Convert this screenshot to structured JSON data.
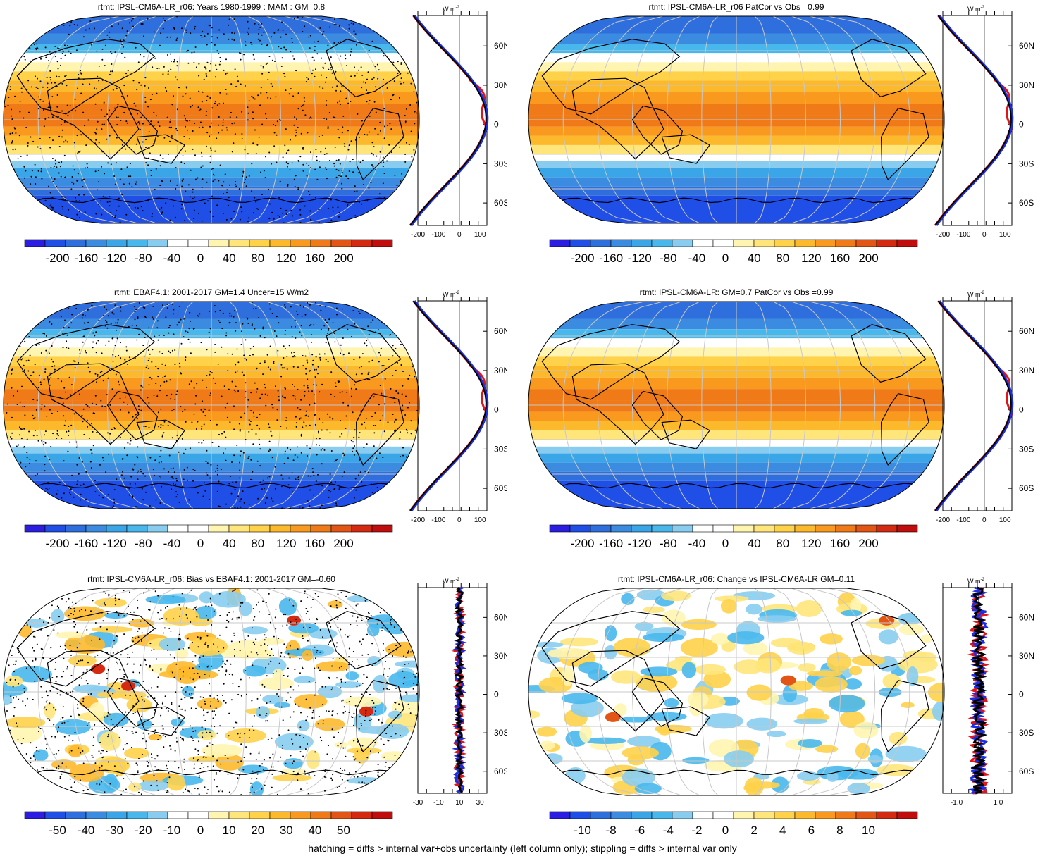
{
  "footnote": "hatching = diffs > internal var+obs uncertainty (left column only); stippling = diffs > internal var only",
  "profile_unit": "W m",
  "profile_unit_sup": "-2",
  "lat_labels": [
    "60N",
    "30N",
    "0",
    "30S",
    "60S"
  ],
  "colors": {
    "scale": [
      "#2c1ee0",
      "#1f4fe6",
      "#2f6fdd",
      "#3b8be0",
      "#3aa6e8",
      "#48b8ec",
      "#88cdf0",
      "#ffffff",
      "#ffffff",
      "#fff5b0",
      "#ffe57a",
      "#ffd24a",
      "#fdb92c",
      "#f99a1f",
      "#f07a17",
      "#e35514",
      "#d42a12",
      "#c00e0e"
    ],
    "model": "#e0151b",
    "obs": "#1d2ee0",
    "third": "#000000",
    "land": "#000000",
    "grid": "#c8c8c8"
  },
  "panels": [
    {
      "title": "rtmt: IPSL-CM6A-LR_r06: Years 1980-1999 : MAM : GM=0.8",
      "colorbar_labels": [
        "-200",
        "-160",
        "-120",
        "-80",
        "-40",
        "0",
        "40",
        "80",
        "120",
        "160",
        "200"
      ],
      "profile_ticks": [
        "-200",
        "-100",
        "0",
        "100"
      ],
      "stipple": true,
      "field": "mean"
    },
    {
      "title": "rtmt: IPSL-CM6A-LR_r06 PatCor vs Obs =0.99",
      "colorbar_labels": [
        "-200",
        "-160",
        "-120",
        "-80",
        "-40",
        "0",
        "40",
        "80",
        "120",
        "160",
        "200"
      ],
      "profile_ticks": [
        "-200",
        "-100",
        "0",
        "100"
      ],
      "stipple": false,
      "field": "mean"
    },
    {
      "title": "rtmt: EBAF4.1: 2001-2017 GM=1.4 Uncer=15 W/m2",
      "colorbar_labels": [
        "-200",
        "-160",
        "-120",
        "-80",
        "-40",
        "0",
        "40",
        "80",
        "120",
        "160",
        "200"
      ],
      "profile_ticks": [
        "-200",
        "-100",
        "0",
        "100"
      ],
      "stipple": true,
      "field": "mean"
    },
    {
      "title": "rtmt: IPSL-CM6A-LR: GM=0.7 PatCor vs Obs =0.99",
      "colorbar_labels": [
        "-200",
        "-160",
        "-120",
        "-80",
        "-40",
        "0",
        "40",
        "80",
        "120",
        "160",
        "200"
      ],
      "profile_ticks": [
        "-200",
        "-100",
        "0",
        "100"
      ],
      "stipple": false,
      "field": "mean"
    },
    {
      "title": "rtmt: IPSL-CM6A-LR_r06: Bias vs EBAF4.1: 2001-2017 GM=-0.60",
      "colorbar_labels": [
        "-50",
        "-40",
        "-30",
        "-20",
        "-10",
        "0",
        "10",
        "20",
        "30",
        "40",
        "50"
      ],
      "profile_ticks": [
        "-30",
        "-10",
        "10",
        "30"
      ],
      "stipple": true,
      "field": "bias"
    },
    {
      "title": "rtmt: IPSL-CM6A-LR_r06: Change vs IPSL-CM6A-LR GM=0.11",
      "colorbar_labels": [
        "-10",
        "-8",
        "-6",
        "-4",
        "-2",
        "0",
        "2",
        "4",
        "6",
        "8",
        "10"
      ],
      "profile_ticks": [
        "-1.0",
        "1.0"
      ],
      "stipple": false,
      "field": "change"
    }
  ]
}
